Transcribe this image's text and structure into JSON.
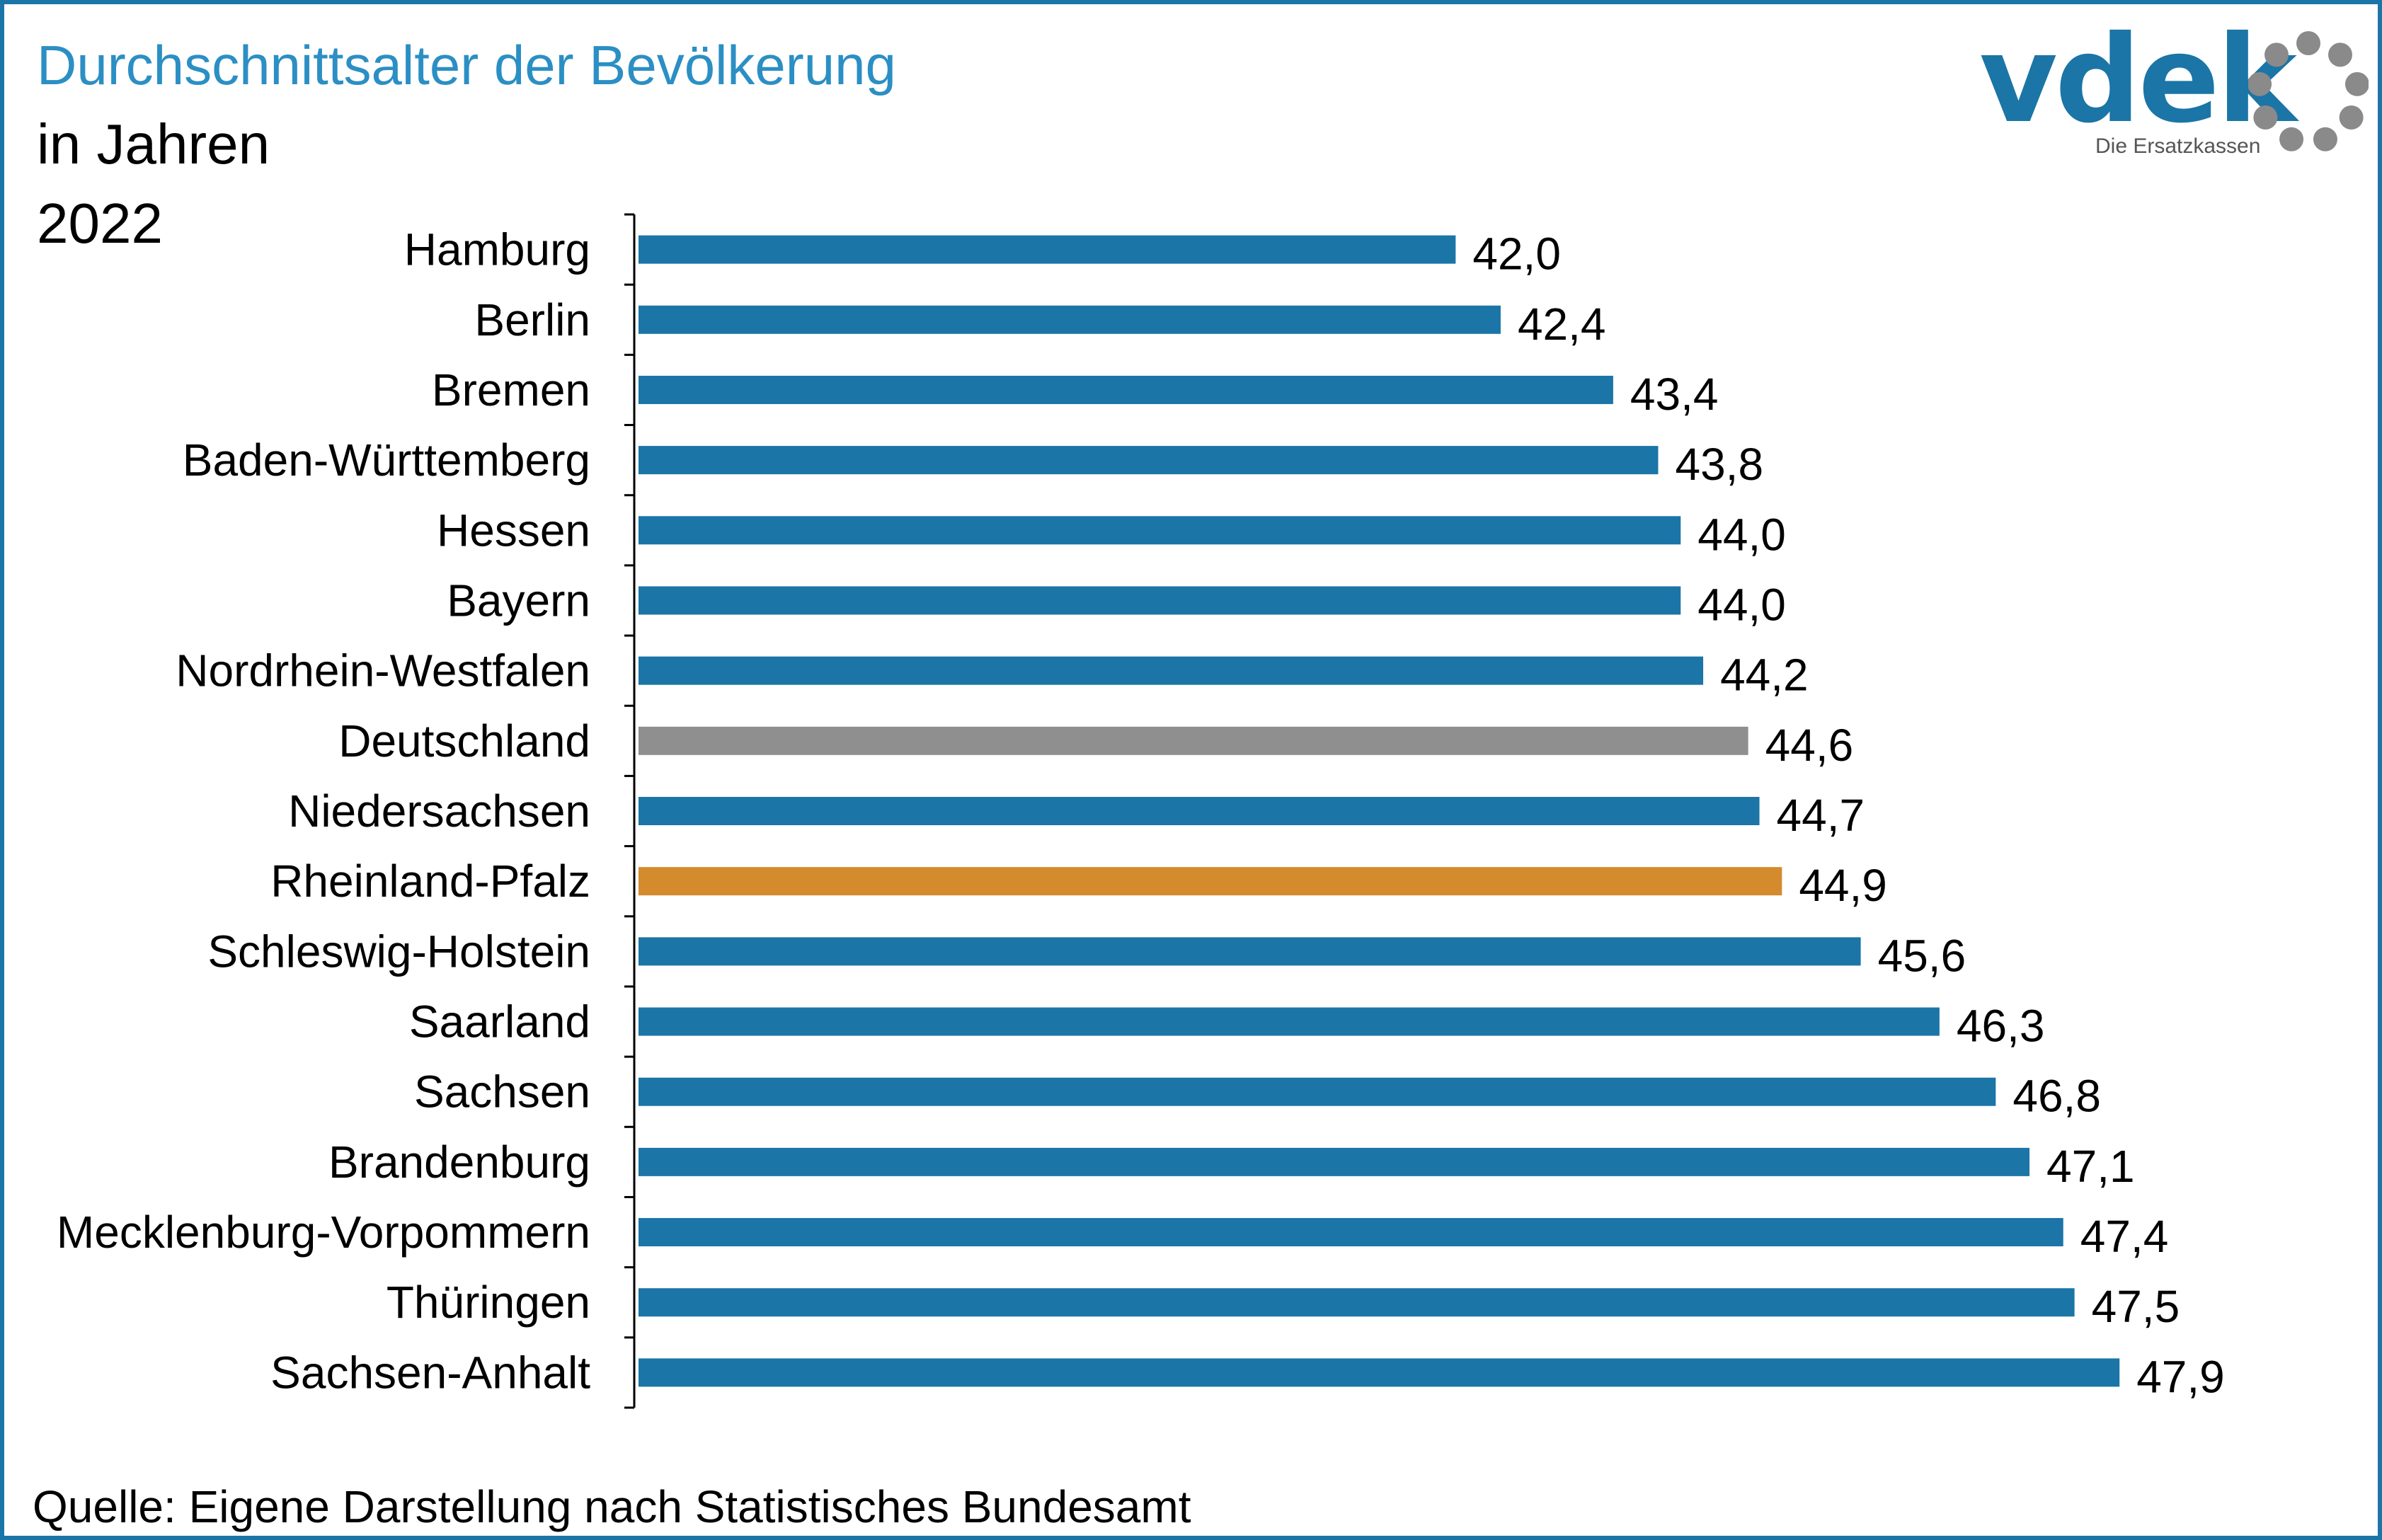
{
  "header": {
    "title": "Durchschnittsalter der Bevölkerung",
    "subtitle": "in Jahren",
    "year": "2022"
  },
  "logo": {
    "word": "vdek",
    "tagline": "Die Ersatzkassen"
  },
  "footer": {
    "source": "Quelle: Eigene Darstellung nach Statistisches Bundesamt"
  },
  "colors": {
    "default": "#1b75a6",
    "reference": "#8f8f8f",
    "highlight": "#d38b2e",
    "logo_ring": "#8a8a8a"
  },
  "chart_data": {
    "type": "bar",
    "orientation": "horizontal",
    "title": "Durchschnittsalter der Bevölkerung",
    "xlabel": "",
    "ylabel": "",
    "xlim": [
      34.7,
      50
    ],
    "grid": false,
    "categories": [
      "Hamburg",
      "Berlin",
      "Bremen",
      "Baden-Württemberg",
      "Hessen",
      "Bayern",
      "Nordrhein-Westfalen",
      "Deutschland",
      "Niedersachsen",
      "Rheinland-Pfalz",
      "Schleswig-Holstein",
      "Saarland",
      "Sachsen",
      "Brandenburg",
      "Mecklenburg-Vorpommern",
      "Thüringen",
      "Sachsen-Anhalt"
    ],
    "values": [
      42.0,
      42.4,
      43.4,
      43.8,
      44.0,
      44.0,
      44.2,
      44.6,
      44.7,
      44.9,
      45.6,
      46.3,
      46.8,
      47.1,
      47.4,
      47.5,
      47.9
    ],
    "value_labels": [
      "42,0",
      "42,4",
      "43,4",
      "43,8",
      "44,0",
      "44,0",
      "44,2",
      "44,6",
      "44,7",
      "44,9",
      "45,6",
      "46,3",
      "46,8",
      "47,1",
      "47,4",
      "47,5",
      "47,9"
    ],
    "bar_roles": [
      "default",
      "default",
      "default",
      "default",
      "default",
      "default",
      "default",
      "reference",
      "default",
      "highlight",
      "default",
      "default",
      "default",
      "default",
      "default",
      "default",
      "default"
    ]
  }
}
